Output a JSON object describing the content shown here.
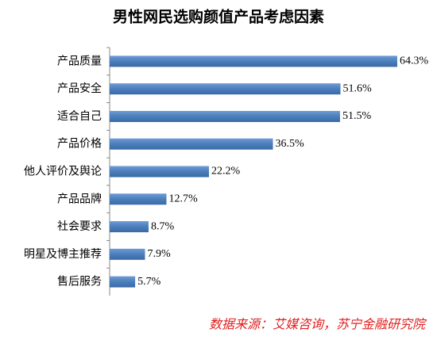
{
  "chart_data": {
    "type": "bar",
    "orientation": "horizontal",
    "title": "男性网民选购颜值产品考虑因素",
    "categories": [
      "产品质量",
      "产品安全",
      "适合自己",
      "产品价格",
      "他人评价及舆论",
      "产品品牌",
      "社会要求",
      "明星及博主推荐",
      "售后服务"
    ],
    "values": [
      64.3,
      51.6,
      51.5,
      36.5,
      22.2,
      12.7,
      8.7,
      7.9,
      5.7
    ],
    "value_labels": [
      "64.3%",
      "51.6%",
      "51.5%",
      "36.5%",
      "22.2%",
      "12.7%",
      "8.7%",
      "7.9%",
      "5.7%"
    ],
    "color": "#4a7ebb",
    "source": "数据来源：艾媒咨询，苏宁金融研究院"
  }
}
